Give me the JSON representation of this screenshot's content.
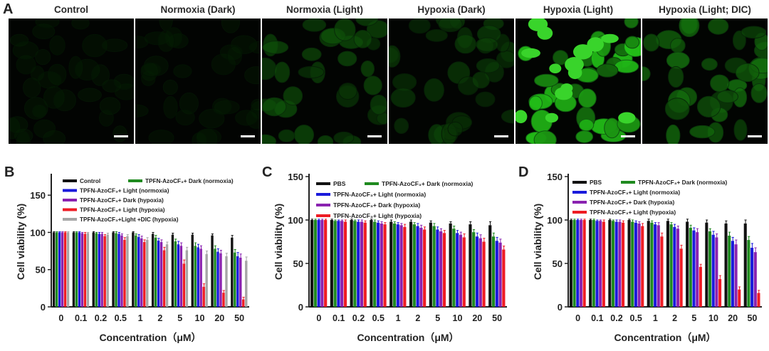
{
  "panel_a": {
    "letter": "A",
    "images": [
      {
        "title": "Control",
        "level": 0.04
      },
      {
        "title": "Normoxia (Dark)",
        "level": 0.03
      },
      {
        "title": "Normoxia (Light)",
        "level": 0.35
      },
      {
        "title": "Hypoxia (Dark)",
        "level": 0.25
      },
      {
        "title": "Hypoxia (Light)",
        "level": 1.0
      },
      {
        "title": "Hypoxia (Light; DIC)",
        "level": 0.55
      }
    ]
  },
  "colors": {
    "black": "#111111",
    "green": "#1f8a1f",
    "blue": "#1a1adb",
    "purple": "#8a22b0",
    "red": "#ee1c24",
    "gray": "#a6a6a6",
    "fluor": "#39d42b"
  },
  "chart_data": [
    {
      "type": "bar",
      "letter": "B",
      "xlabel": "Concentration（μM）",
      "ylabel": "Cell viability (%)",
      "ylim": [
        0,
        175
      ],
      "yticks": [
        0,
        50,
        100,
        150
      ],
      "categories": [
        "0",
        "0.1",
        "0.2",
        "0.5",
        "1",
        "2",
        "5",
        "10",
        "20",
        "50"
      ],
      "series": [
        {
          "name": "Control",
          "color": "#111111",
          "values": [
            100,
            100,
            100,
            100,
            100,
            98,
            97,
            97,
            96,
            93
          ],
          "errors": [
            1,
            1,
            1,
            1,
            1,
            2,
            2,
            2,
            2,
            3
          ]
        },
        {
          "name": "TPFN-AzoCF₃+ Dark (normoxia)",
          "color": "#1f8a1f",
          "values": [
            100,
            100,
            99,
            99,
            96,
            93,
            88,
            82,
            78,
            73
          ],
          "errors": [
            1,
            1,
            1,
            2,
            2,
            3,
            3,
            4,
            4,
            4
          ]
        },
        {
          "name": "TPFN-AzoCF₃+ Light (normoxia)",
          "color": "#1a1adb",
          "values": [
            100,
            100,
            98,
            98,
            94,
            89,
            84,
            80,
            74,
            68
          ],
          "errors": [
            1,
            1,
            2,
            2,
            3,
            3,
            4,
            4,
            4,
            5
          ]
        },
        {
          "name": "TPFN-AzoCF₃+ Dark (hypoxia)",
          "color": "#8a22b0",
          "values": [
            100,
            99,
            98,
            96,
            92,
            87,
            82,
            78,
            72,
            66
          ],
          "errors": [
            1,
            1,
            2,
            2,
            3,
            3,
            4,
            4,
            4,
            5
          ]
        },
        {
          "name": "TPFN-AzoCF₃+ Light (hypoxia)",
          "color": "#ee1c24",
          "values": [
            100,
            98,
            95,
            90,
            87,
            76,
            58,
            27,
            19,
            10
          ],
          "errors": [
            1,
            2,
            2,
            3,
            3,
            4,
            5,
            4,
            3,
            3
          ]
        },
        {
          "name": "TPFN-AzoCF₃+Light +DIC (hypoxia)",
          "color": "#a6a6a6",
          "values": [
            100,
            99,
            97,
            95,
            90,
            84,
            76,
            71,
            68,
            62
          ],
          "errors": [
            1,
            1,
            2,
            2,
            3,
            3,
            4,
            4,
            4,
            5
          ]
        }
      ]
    },
    {
      "type": "bar",
      "letter": "C",
      "xlabel": "Concentration（μM）",
      "ylabel": "Cell viability (%)",
      "ylim": [
        0,
        150
      ],
      "yticks": [
        0,
        50,
        100,
        150
      ],
      "categories": [
        "0",
        "0.1",
        "0.2",
        "0.5",
        "1",
        "2",
        "5",
        "10",
        "20",
        "50"
      ],
      "series": [
        {
          "name": "PBS",
          "color": "#111111",
          "values": [
            100,
            100,
            100,
            100,
            98,
            98,
            97,
            96,
            95,
            94
          ],
          "errors": [
            1,
            1,
            1,
            1,
            2,
            2,
            2,
            2,
            3,
            4
          ]
        },
        {
          "name": "TPFN-AzoCF₃+ Dark (normoxia)",
          "color": "#1f8a1f",
          "values": [
            100,
            99,
            99,
            98,
            96,
            95,
            93,
            90,
            86,
            81
          ],
          "errors": [
            1,
            1,
            1,
            2,
            2,
            2,
            3,
            3,
            3,
            4
          ]
        },
        {
          "name": "TPFN-AzoCF₃+ Light (normoxia)",
          "color": "#1a1adb",
          "values": [
            100,
            99,
            98,
            97,
            95,
            93,
            89,
            85,
            81,
            76
          ],
          "errors": [
            1,
            1,
            2,
            2,
            2,
            3,
            3,
            3,
            4,
            4
          ]
        },
        {
          "name": "TPFN-AzoCF₃+ Dark (hypoxia)",
          "color": "#8a22b0",
          "values": [
            100,
            99,
            98,
            96,
            94,
            91,
            87,
            83,
            79,
            74
          ],
          "errors": [
            1,
            1,
            2,
            2,
            2,
            3,
            3,
            3,
            4,
            4
          ]
        },
        {
          "name": "TPFN-AzoCF₃+ Light (hypoxia)",
          "color": "#ee1c24",
          "values": [
            100,
            98,
            97,
            95,
            92,
            89,
            85,
            80,
            75,
            66
          ],
          "errors": [
            1,
            2,
            2,
            2,
            3,
            3,
            3,
            4,
            4,
            4
          ]
        }
      ]
    },
    {
      "type": "bar",
      "letter": "D",
      "xlabel": "Concentration（μM）",
      "ylabel": "Cell viability (%)",
      "ylim": [
        0,
        150
      ],
      "yticks": [
        0,
        50,
        100,
        150
      ],
      "categories": [
        "0",
        "0.1",
        "0.2",
        "0.5",
        "1",
        "2",
        "5",
        "10",
        "20",
        "50"
      ],
      "series": [
        {
          "name": "PBS",
          "color": "#111111",
          "values": [
            100,
            100,
            100,
            100,
            99,
            99,
            98,
            97,
            96,
            96
          ],
          "errors": [
            1,
            1,
            1,
            1,
            2,
            2,
            3,
            3,
            3,
            4
          ]
        },
        {
          "name": "TPFN-AzoCF₃+ Dark (normoxia)",
          "color": "#1f8a1f",
          "values": [
            100,
            100,
            99,
            98,
            97,
            95,
            91,
            87,
            82,
            77
          ],
          "errors": [
            1,
            1,
            1,
            2,
            2,
            2,
            3,
            3,
            4,
            4
          ]
        },
        {
          "name": "TPFN-AzoCF₃+ Light (normoxia)",
          "color": "#1a1adb",
          "values": [
            100,
            99,
            98,
            97,
            95,
            92,
            88,
            83,
            76,
            68
          ],
          "errors": [
            1,
            1,
            2,
            2,
            2,
            3,
            3,
            4,
            4,
            5
          ]
        },
        {
          "name": "TPFN-AzoCF₃+ Dark (hypoxia)",
          "color": "#8a22b0",
          "values": [
            100,
            99,
            98,
            96,
            94,
            90,
            86,
            80,
            72,
            63
          ],
          "errors": [
            1,
            1,
            2,
            2,
            3,
            3,
            4,
            4,
            5,
            5
          ]
        },
        {
          "name": "TPFN-AzoCF₃+ Light (hypoxia)",
          "color": "#ee1c24",
          "values": [
            100,
            98,
            97,
            93,
            81,
            67,
            46,
            32,
            20,
            16
          ],
          "errors": [
            1,
            2,
            2,
            3,
            4,
            4,
            3,
            4,
            3,
            3
          ]
        }
      ]
    }
  ]
}
